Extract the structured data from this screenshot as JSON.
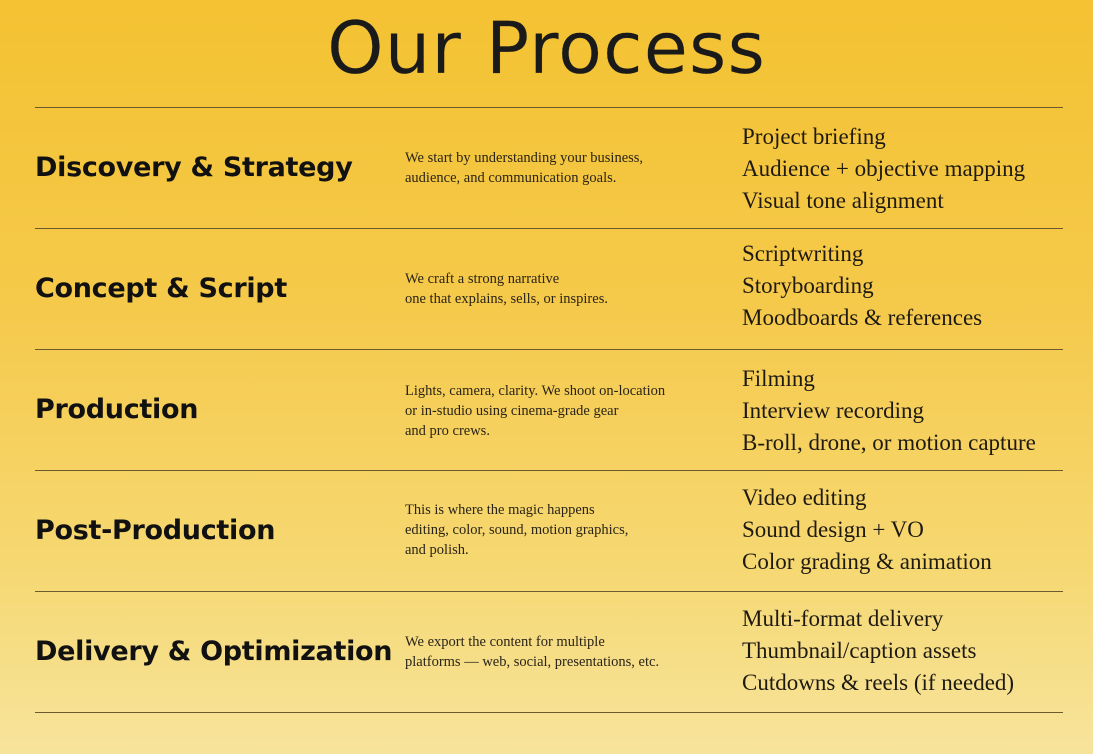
{
  "title": "Our Process",
  "steps": [
    {
      "name": "Discovery & Strategy",
      "description": "We start by understanding your business,\naudience, and communication goals.",
      "items": [
        "Project briefing",
        "Audience + objective mapping",
        "Visual tone alignment"
      ]
    },
    {
      "name": "Concept & Script",
      "description": "We craft a strong narrative\none that explains, sells, or inspires.",
      "items": [
        "Scriptwriting",
        "Storyboarding",
        "Moodboards & references"
      ]
    },
    {
      "name": "Production",
      "description": "Lights, camera, clarity. We shoot on-location\nor in-studio using cinema-grade gear\nand pro crews.",
      "items": [
        "Filming",
        "Interview recording",
        "B-roll, drone, or motion capture"
      ]
    },
    {
      "name": "Post-Production",
      "description": "This is where the magic happens\nediting, color, sound, motion graphics,\nand polish.",
      "items": [
        "Video editing",
        "Sound design + VO",
        "Color grading & animation"
      ]
    },
    {
      "name": "Delivery & Optimization",
      "description": "We export the content for multiple\nplatforms — web, social, presentations, etc.",
      "items": [
        "Multi-format delivery",
        "Thumbnail/caption assets",
        "Cutdowns & reels (if needed)"
      ]
    }
  ],
  "colors": {
    "background_top": "#f4c232",
    "background_bottom": "#f7e49c",
    "text": "#111111",
    "divider": "#6b5a2e"
  }
}
